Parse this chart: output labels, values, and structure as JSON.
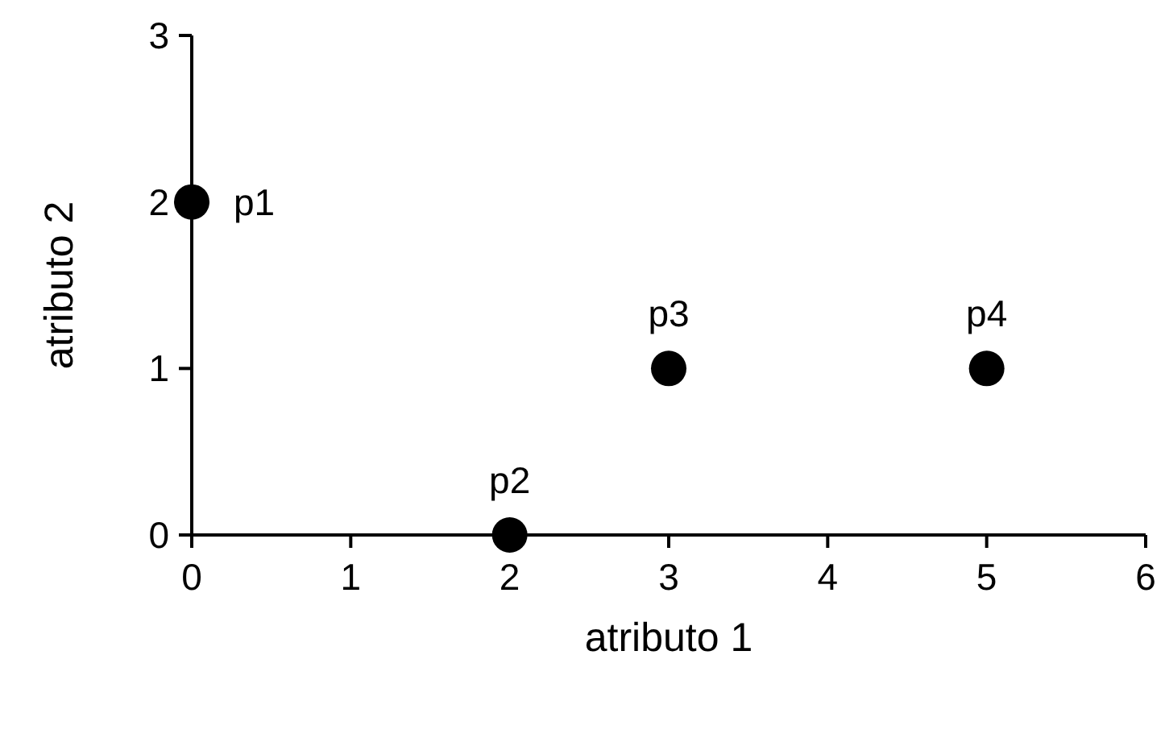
{
  "chart_data": {
    "type": "scatter",
    "xlabel": "atributo 1",
    "ylabel": "atributo 2",
    "x": [
      0,
      2,
      3,
      5
    ],
    "values": [
      2,
      0,
      1,
      1
    ],
    "color": "#000000",
    "marker": "circle",
    "xlim": [
      0,
      6
    ],
    "ylim": [
      0,
      3
    ],
    "xticks": [
      0,
      1,
      2,
      3,
      4,
      5,
      6
    ],
    "yticks": [
      0,
      1,
      2,
      3
    ],
    "grid": false,
    "annotations": [
      {
        "text": "p1",
        "x": 0,
        "y": 2
      },
      {
        "text": "p2",
        "x": 2,
        "y": 0
      },
      {
        "text": "p3",
        "x": 3,
        "y": 1
      },
      {
        "text": "p4",
        "x": 5,
        "y": 1
      }
    ]
  }
}
